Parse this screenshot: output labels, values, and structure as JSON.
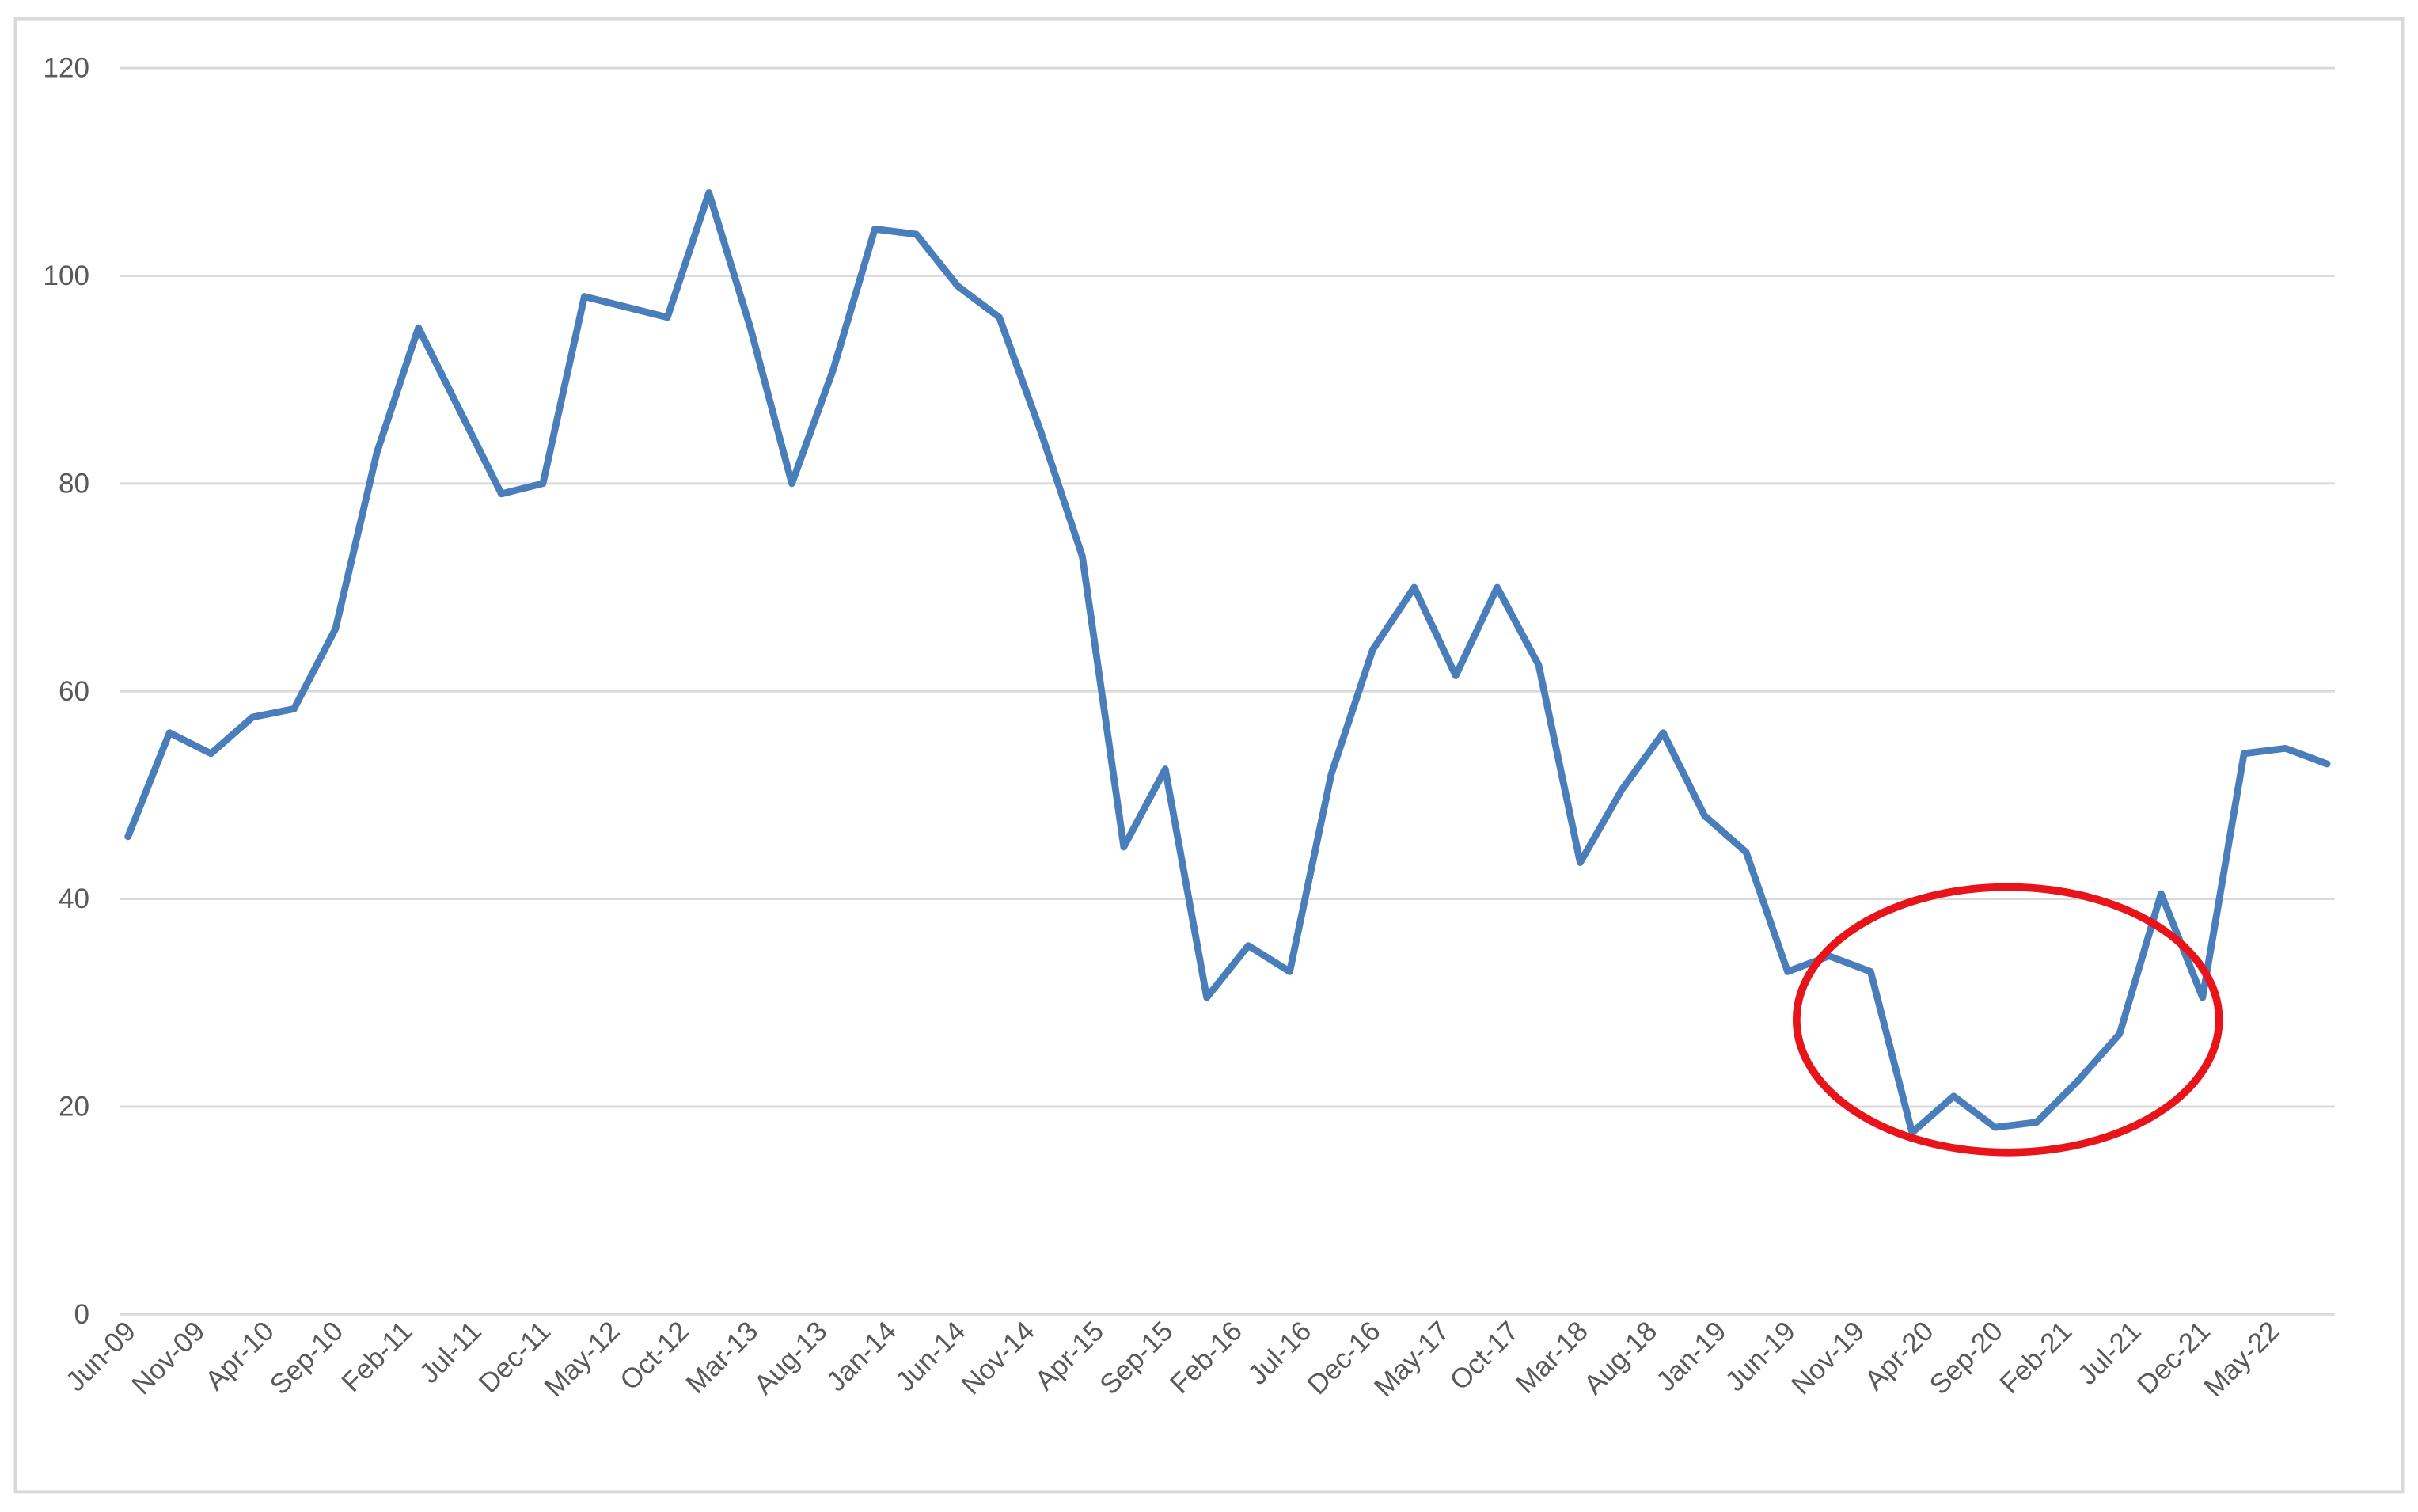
{
  "chart_data": {
    "type": "line",
    "x": [
      "Jun-09",
      "Sep-09",
      "Dec-09",
      "Mar-10",
      "Jun-10",
      "Sep-10",
      "Dec-10",
      "Mar-11",
      "Jun-11",
      "Sep-11",
      "Dec-11",
      "Mar-12",
      "Jun-12",
      "Sep-12",
      "Dec-12",
      "Mar-13",
      "Jun-13",
      "Sep-13",
      "Dec-13",
      "Mar-14",
      "Jun-14",
      "Sep-14",
      "Dec-14",
      "Mar-15",
      "Jun-15",
      "Sep-15",
      "Dec-15",
      "Mar-16",
      "Jun-16",
      "Sep-16",
      "Dec-16",
      "Mar-17",
      "Jun-17",
      "Sep-17",
      "Dec-17",
      "Mar-18",
      "Jun-18",
      "Sep-18",
      "Dec-18",
      "Mar-19",
      "Jun-19",
      "Sep-19",
      "Dec-19",
      "Mar-20",
      "Jun-20",
      "Sep-20",
      "Dec-20",
      "Mar-21",
      "Jun-21",
      "Sep-21",
      "Dec-21",
      "Mar-22",
      "Jun-22",
      "Sep-22"
    ],
    "values": [
      46,
      56,
      54,
      57.5,
      58.3,
      66,
      83,
      95,
      87,
      79,
      80,
      98,
      97,
      96,
      108,
      95,
      80,
      91,
      104.5,
      104,
      99,
      96,
      85,
      73,
      45,
      52.5,
      30.5,
      35.5,
      33,
      52,
      64,
      70,
      61.5,
      70,
      62.5,
      43.5,
      50.5,
      56,
      48,
      44.5,
      33,
      34.5,
      33,
      17.5,
      21,
      18,
      18.5,
      22.5,
      27,
      40.5,
      30.5,
      54,
      54.5,
      53
    ],
    "color": "#4a7ebb",
    "xticks": [
      "Jun-09",
      "Nov-09",
      "Apr-10",
      "Sep-10",
      "Feb-11",
      "Jul-11",
      "Dec-11",
      "May-12",
      "Oct-12",
      "Mar-13",
      "Aug-13",
      "Jan-14",
      "Jun-14",
      "Nov-14",
      "Apr-15",
      "Sep-15",
      "Feb-16",
      "Jul-16",
      "Dec-16",
      "May-17",
      "Oct-17",
      "Mar-18",
      "Aug-18",
      "Jan-19",
      "Jun-19",
      "Nov-19",
      "Apr-20",
      "Sep-20",
      "Feb-21",
      "Jul-21",
      "Dec-21",
      "May-22"
    ],
    "ylim": [
      0,
      120
    ],
    "yticks": [
      0,
      20,
      40,
      60,
      80,
      100,
      120
    ],
    "grid": true
  }
}
